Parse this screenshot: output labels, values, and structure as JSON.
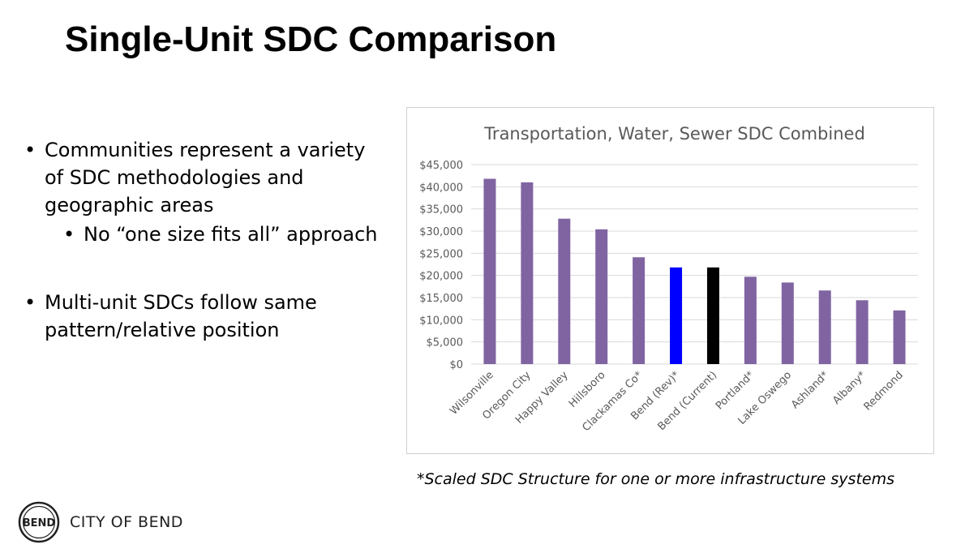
{
  "slide": {
    "title": "Single-Unit SDC Comparison",
    "bullets": [
      {
        "text": "Communities represent a variety of SDC methodologies and geographic areas",
        "level": 1
      },
      {
        "text": "No “one size fits all” approach",
        "level": 2
      },
      {
        "text": "Multi-unit SDCs follow same pattern/relative position",
        "level": 1
      }
    ],
    "footnote": "*Scaled SDC Structure for one or more infrastructure systems",
    "logo": {
      "icon": "city-of-bend-seal-icon",
      "text": "CITY OF BEND",
      "mark": "BEND"
    }
  },
  "chart_data": {
    "type": "bar",
    "title": "Transportation, Water, Sewer SDC Combined",
    "xlabel": "",
    "ylabel": "",
    "ylim": [
      0,
      45000
    ],
    "ytick_step": 5000,
    "ytick_labels": [
      "$0",
      "$5,000",
      "$10,000",
      "$15,000",
      "$20,000",
      "$25,000",
      "$30,000",
      "$35,000",
      "$40,000",
      "$45,000"
    ],
    "grid": true,
    "legend": "none",
    "categories": [
      "Wilsonville",
      "Oregon City",
      "Happy Valley",
      "Hillsboro",
      "Clackamas Co*",
      "Bend (Rev)*",
      "Bend (Current)",
      "Portland*",
      "Lake Oswego",
      "Ashland*",
      "Albany*",
      "Redmond"
    ],
    "values": [
      41800,
      41000,
      32800,
      30400,
      24100,
      21800,
      21800,
      19700,
      18400,
      16600,
      14400,
      12100
    ],
    "colors": [
      "#8064a2",
      "#8064a2",
      "#8064a2",
      "#8064a2",
      "#8064a2",
      "#0000ff",
      "#000000",
      "#8064a2",
      "#8064a2",
      "#8064a2",
      "#8064a2",
      "#8064a2"
    ]
  }
}
